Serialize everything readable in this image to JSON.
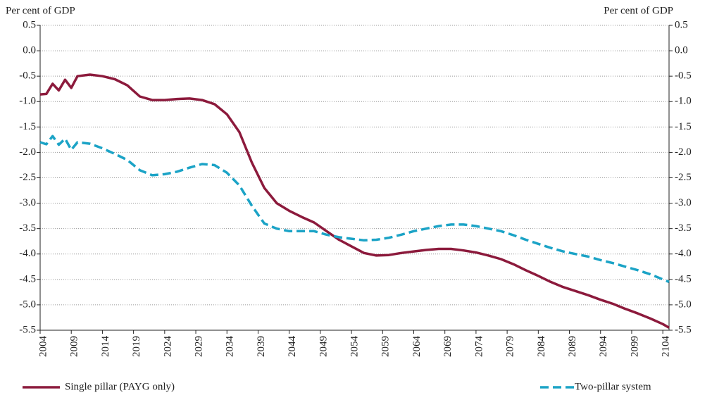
{
  "chart_data": {
    "type": "line",
    "y_label": "Per cent of GDP",
    "y2_label": "Per cent of GDP",
    "x": [
      2004,
      2005,
      2006,
      2007,
      2008,
      2009,
      2010,
      2012,
      2014,
      2016,
      2018,
      2020,
      2022,
      2024,
      2026,
      2028,
      2030,
      2032,
      2034,
      2036,
      2038,
      2040,
      2042,
      2044,
      2046,
      2048,
      2050,
      2052,
      2054,
      2056,
      2058,
      2060,
      2062,
      2064,
      2066,
      2068,
      2070,
      2072,
      2074,
      2076,
      2078,
      2080,
      2082,
      2084,
      2086,
      2088,
      2090,
      2092,
      2094,
      2096,
      2098,
      2100,
      2102,
      2104,
      2105
    ],
    "series": [
      {
        "name": "Single pillar (PAYG only)",
        "color": "#8c1a3c",
        "dashed": false,
        "values": [
          -0.86,
          -0.85,
          -0.65,
          -0.78,
          -0.57,
          -0.73,
          -0.5,
          -0.47,
          -0.5,
          -0.56,
          -0.68,
          -0.9,
          -0.97,
          -0.97,
          -0.95,
          -0.94,
          -0.97,
          -1.05,
          -1.25,
          -1.6,
          -2.2,
          -2.7,
          -3.0,
          -3.15,
          -3.27,
          -3.38,
          -3.55,
          -3.72,
          -3.85,
          -3.98,
          -4.03,
          -4.02,
          -3.98,
          -3.95,
          -3.92,
          -3.9,
          -3.9,
          -3.93,
          -3.97,
          -4.03,
          -4.1,
          -4.2,
          -4.32,
          -4.43,
          -4.55,
          -4.65,
          -4.73,
          -4.81,
          -4.9,
          -4.98,
          -5.08,
          -5.17,
          -5.27,
          -5.38,
          -5.45
        ]
      },
      {
        "name": "Two-pillar system",
        "color": "#1ba3c6",
        "dashed": true,
        "values": [
          -1.8,
          -1.84,
          -1.68,
          -1.85,
          -1.73,
          -1.95,
          -1.8,
          -1.83,
          -1.92,
          -2.03,
          -2.15,
          -2.35,
          -2.45,
          -2.43,
          -2.38,
          -2.3,
          -2.23,
          -2.25,
          -2.4,
          -2.65,
          -3.05,
          -3.4,
          -3.5,
          -3.55,
          -3.55,
          -3.55,
          -3.62,
          -3.67,
          -3.7,
          -3.73,
          -3.72,
          -3.68,
          -3.62,
          -3.55,
          -3.5,
          -3.45,
          -3.42,
          -3.42,
          -3.45,
          -3.5,
          -3.55,
          -3.63,
          -3.72,
          -3.8,
          -3.88,
          -3.95,
          -4.0,
          -4.05,
          -4.12,
          -4.18,
          -4.25,
          -4.32,
          -4.4,
          -4.5,
          -4.55
        ]
      }
    ],
    "xlim": [
      2004,
      2105
    ],
    "xticks": [
      2004,
      2009,
      2014,
      2019,
      2024,
      2029,
      2034,
      2039,
      2044,
      2049,
      2054,
      2059,
      2064,
      2069,
      2074,
      2079,
      2084,
      2089,
      2094,
      2099,
      2104
    ],
    "ylim": [
      -5.5,
      0.5
    ],
    "yticks": [
      0.5,
      {
        "value": 0,
        "label": "0.0"
      },
      -0.5,
      {
        "value": -1,
        "label": "-1.0"
      },
      -1.5,
      {
        "value": -2,
        "label": "-2.0"
      },
      -2.5,
      {
        "value": -3,
        "label": "-3.0"
      },
      -3.5,
      {
        "value": -4,
        "label": "-4.0"
      },
      -4.5,
      {
        "value": -5,
        "label": "-5.0"
      },
      -5.5
    ],
    "y2lim": [
      -5.5,
      0.5
    ],
    "y2ticks": [
      0.5,
      {
        "value": 0,
        "label": "0.0"
      },
      -0.5,
      {
        "value": -1,
        "label": "-1.0"
      },
      -1.5,
      {
        "value": -2,
        "label": "-2.0"
      },
      -2.5,
      {
        "value": -3,
        "label": "-3.0"
      },
      -3.5,
      {
        "value": -4,
        "label": "-4.0"
      },
      -4.5,
      {
        "value": -5,
        "label": "-5.0"
      },
      -5.5
    ],
    "grid": true
  }
}
